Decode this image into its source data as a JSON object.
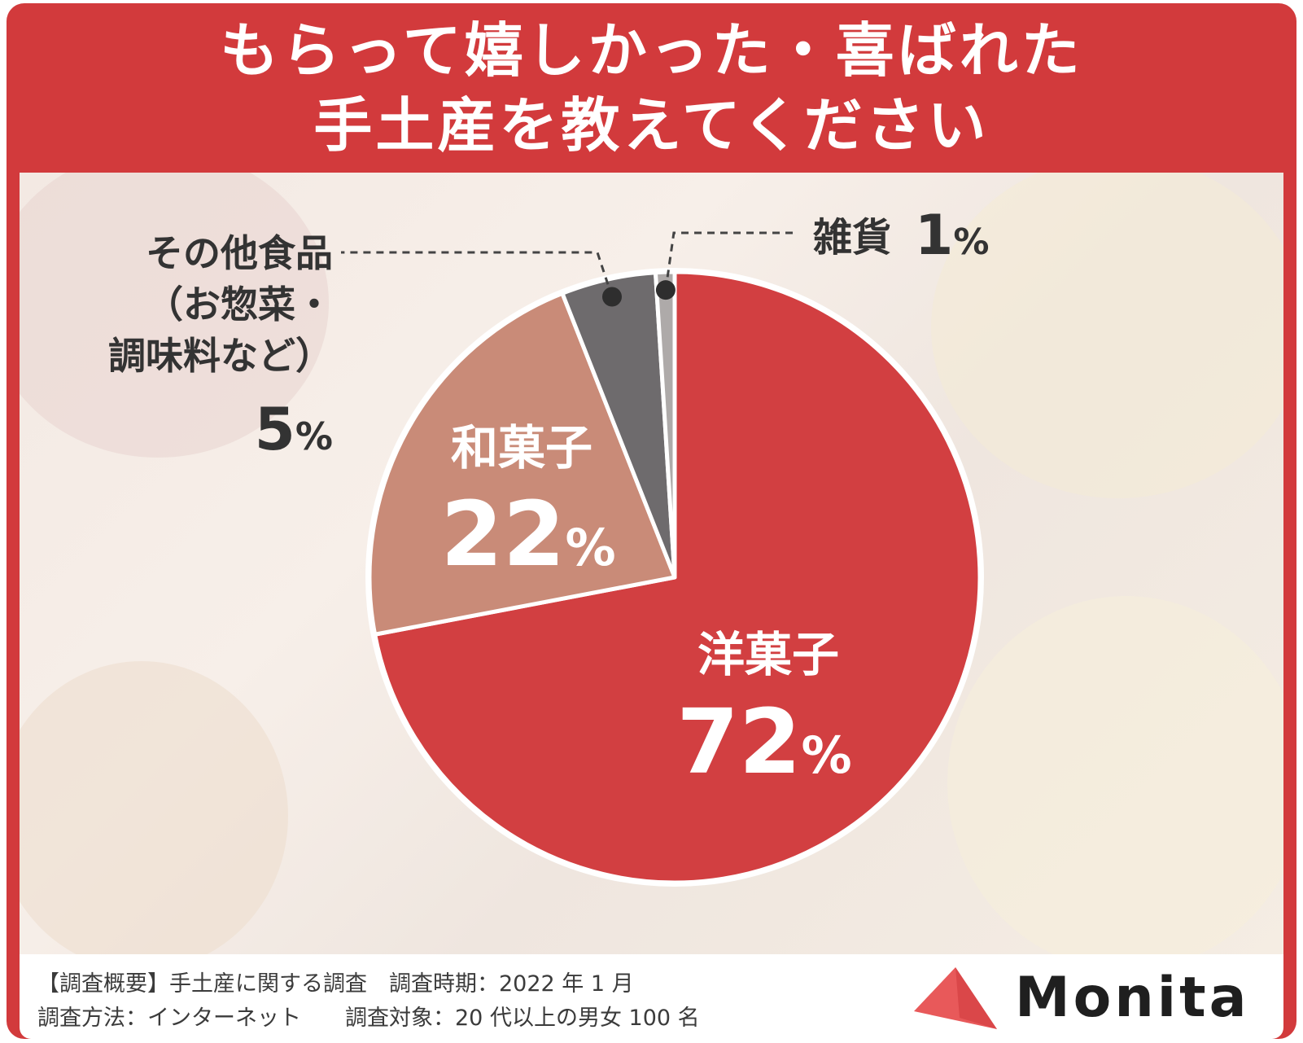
{
  "title": {
    "line1": "もらって嬉しかった・喜ばれた",
    "line2": "手土産を教えてください"
  },
  "chart_data": {
    "type": "pie",
    "title": "もらって嬉しかった・喜ばれた手土産を教えてください",
    "start_angle_deg": 0,
    "direction": "clockwise",
    "slices": [
      {
        "label": "洋菓子",
        "value": 72,
        "pct_text": "72",
        "color": "#d23f41"
      },
      {
        "label": "和菓子",
        "value": 22,
        "pct_text": "22",
        "color": "#c98b78"
      },
      {
        "label_lines": [
          "その他食品",
          "（お惣菜・",
          "調味料など）"
        ],
        "label": "その他食品（お惣菜・調味料など）",
        "value": 5,
        "pct_text": "5",
        "color": "#6e6b6d"
      },
      {
        "label": "雑貨",
        "value": 1,
        "pct_text": "1",
        "color": "#aeaaa9"
      }
    ],
    "percent_sign": "%"
  },
  "footer": {
    "note_line1": "【調査概要】手土産に関する調査　調査時期：2022 年 1 月",
    "note_line2": "調査方法：インターネット　　調査対象：20 代以上の男女 100 名"
  },
  "logo": {
    "text": "Monita",
    "mark_color": "#e8595a"
  }
}
